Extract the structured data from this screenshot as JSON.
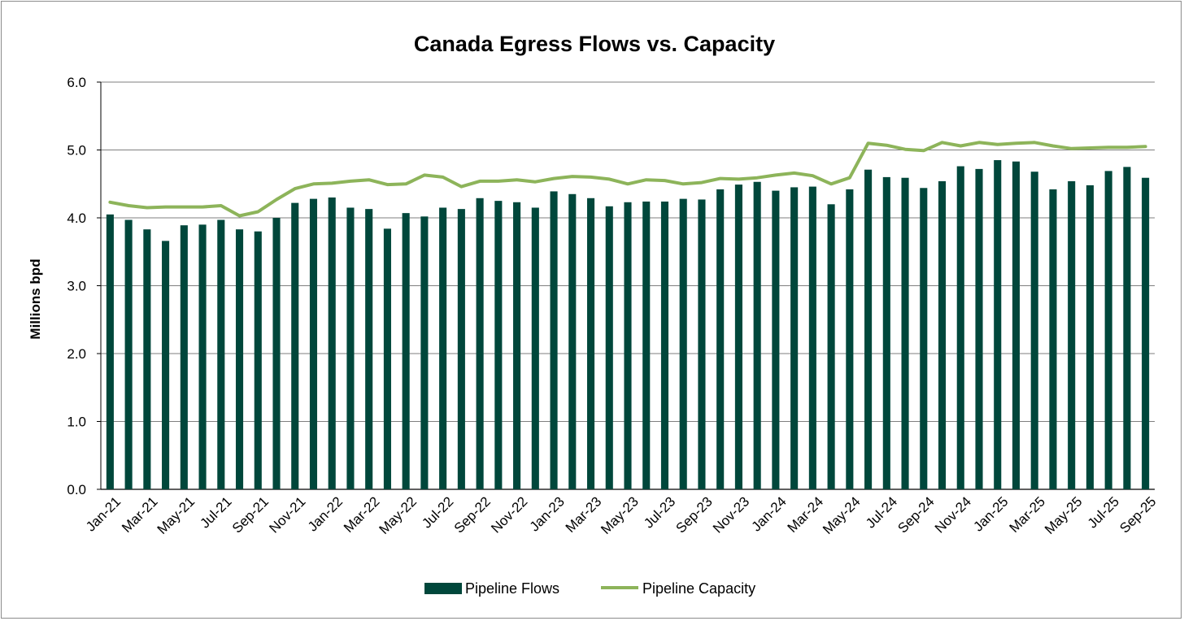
{
  "chart_data": {
    "type": "bar",
    "title": "Canada Egress Flows vs. Capacity",
    "xlabel": "",
    "ylabel": "Millions bpd",
    "ylim": [
      0,
      6
    ],
    "yticks": [
      "0.0",
      "1.0",
      "2.0",
      "3.0",
      "4.0",
      "5.0",
      "6.0"
    ],
    "grid": "horizontal",
    "legend_position": "bottom",
    "categories": [
      "Jan-21",
      "Feb-21",
      "Mar-21",
      "Apr-21",
      "May-21",
      "Jun-21",
      "Jul-21",
      "Aug-21",
      "Sep-21",
      "Oct-21",
      "Nov-21",
      "Dec-21",
      "Jan-22",
      "Feb-22",
      "Mar-22",
      "Apr-22",
      "May-22",
      "Jun-22",
      "Jul-22",
      "Aug-22",
      "Sep-22",
      "Oct-22",
      "Nov-22",
      "Dec-22",
      "Jan-23",
      "Feb-23",
      "Mar-23",
      "Apr-23",
      "May-23",
      "Jun-23",
      "Jul-23",
      "Aug-23",
      "Sep-23",
      "Oct-23",
      "Nov-23",
      "Dec-23",
      "Jan-24",
      "Feb-24",
      "Mar-24",
      "Apr-24",
      "May-24",
      "Jun-24",
      "Jul-24",
      "Aug-24",
      "Sep-24",
      "Oct-24",
      "Nov-24",
      "Dec-24",
      "Jan-25",
      "Feb-25",
      "Mar-25",
      "Apr-25",
      "May-25",
      "Jun-25",
      "Jul-25",
      "Aug-25",
      "Sep-25"
    ],
    "tick_labels": [
      "Jan-21",
      "Mar-21",
      "May-21",
      "Jul-21",
      "Sep-21",
      "Nov-21",
      "Jan-22",
      "Mar-22",
      "May-22",
      "Jul-22",
      "Sep-22",
      "Nov-22",
      "Jan-23",
      "Mar-23",
      "May-23",
      "Jul-23",
      "Sep-23",
      "Nov-23",
      "Jan-24",
      "Mar-24",
      "May-24",
      "Jul-24",
      "Sep-24",
      "Nov-24",
      "Jan-25",
      "Mar-25",
      "May-25",
      "Jul-25",
      "Sep-25"
    ],
    "series": [
      {
        "name": "Pipeline Flows",
        "type": "bar",
        "color": "#00473b",
        "values": [
          4.05,
          3.97,
          3.83,
          3.66,
          3.89,
          3.9,
          3.97,
          3.83,
          3.8,
          4.0,
          4.22,
          4.28,
          4.3,
          4.15,
          4.13,
          3.84,
          4.07,
          4.02,
          4.15,
          4.13,
          4.29,
          4.25,
          4.23,
          4.15,
          4.39,
          4.35,
          4.29,
          4.17,
          4.23,
          4.24,
          4.24,
          4.28,
          4.27,
          4.42,
          4.49,
          4.53,
          4.4,
          4.45,
          4.46,
          4.2,
          4.42,
          4.71,
          4.6,
          4.59,
          4.44,
          4.54,
          4.76,
          4.72,
          4.85,
          4.83,
          4.68,
          4.42,
          4.54,
          4.48,
          4.69,
          4.75,
          4.59
        ]
      },
      {
        "name": "Pipeline Capacity",
        "type": "line",
        "color": "#8db45a",
        "values": [
          4.23,
          4.18,
          4.15,
          4.16,
          4.16,
          4.16,
          4.18,
          4.03,
          4.09,
          4.27,
          4.43,
          4.5,
          4.51,
          4.54,
          4.56,
          4.49,
          4.5,
          4.63,
          4.6,
          4.46,
          4.54,
          4.54,
          4.56,
          4.53,
          4.58,
          4.61,
          4.6,
          4.57,
          4.5,
          4.56,
          4.55,
          4.5,
          4.52,
          4.58,
          4.57,
          4.59,
          4.63,
          4.66,
          4.62,
          4.5,
          4.59,
          5.1,
          5.07,
          5.01,
          4.99,
          5.11,
          5.06,
          5.11,
          5.08,
          5.1,
          5.11,
          5.06,
          5.02,
          5.03,
          5.04,
          5.04,
          5.05
        ]
      }
    ]
  }
}
